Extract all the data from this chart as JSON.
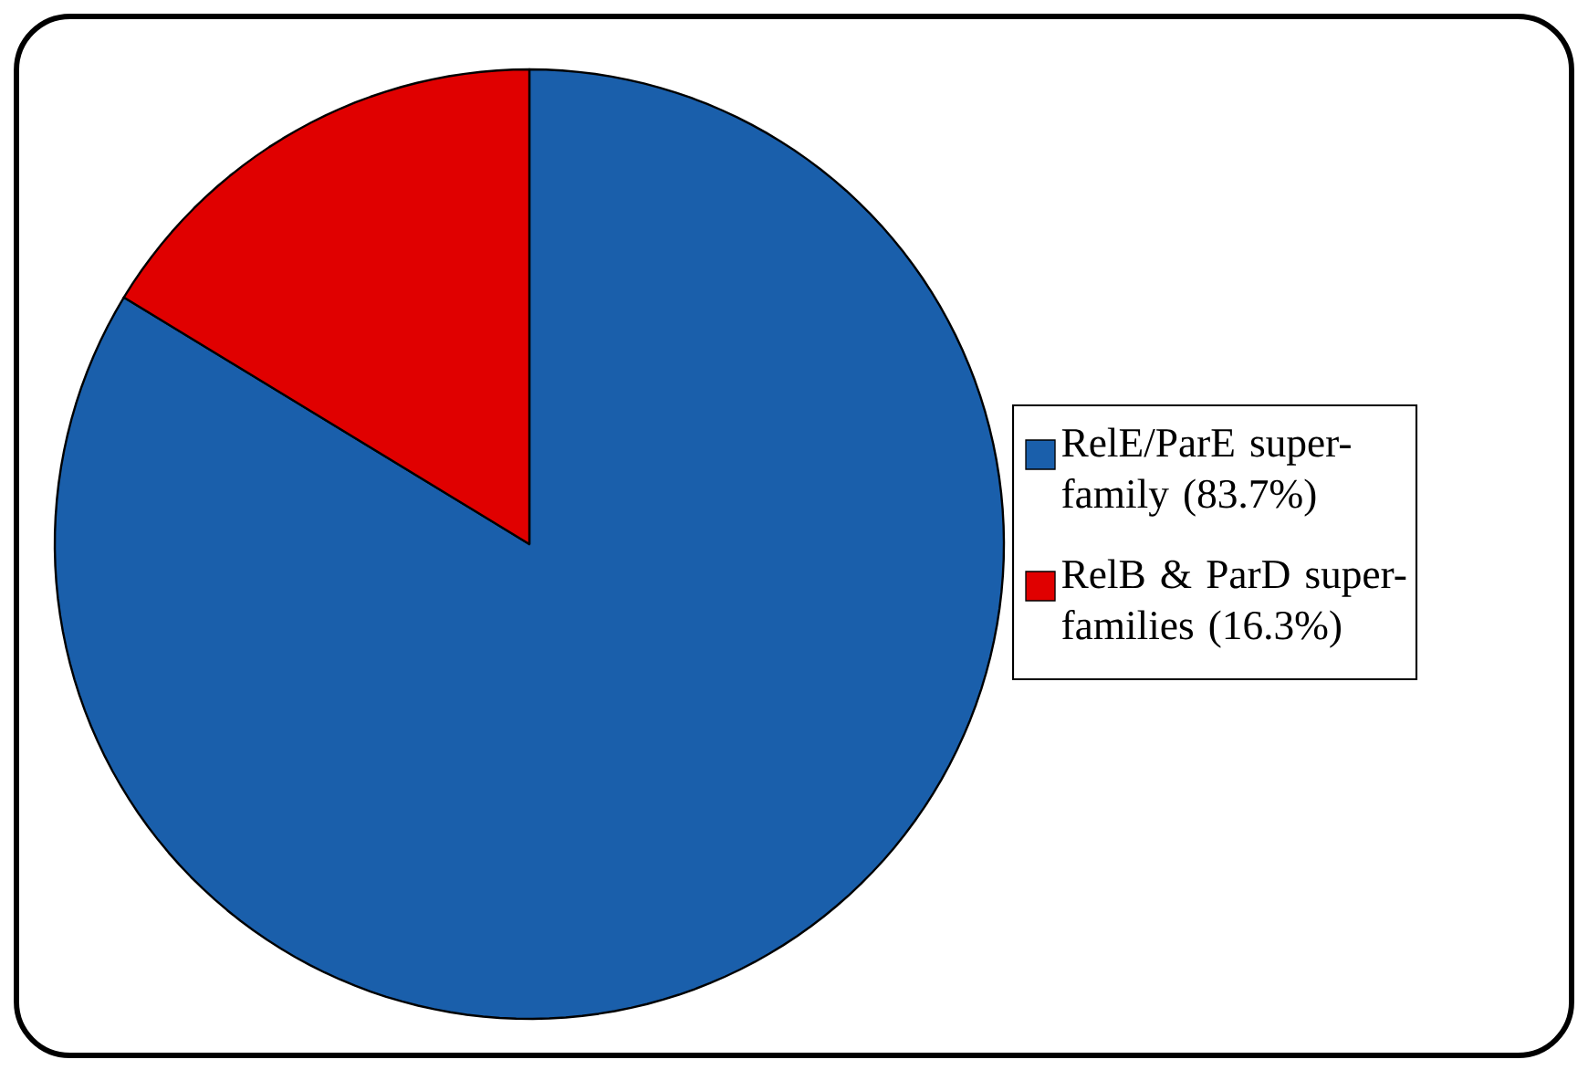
{
  "chart_data": {
    "type": "pie",
    "categories": [
      "RelE/ParE super-family (83.7%)",
      "RelB & ParD super-families (16.3%)"
    ],
    "values": [
      83.7,
      16.3
    ],
    "colors": [
      "#1a5fab",
      "#e00000"
    ],
    "legend": "right"
  }
}
